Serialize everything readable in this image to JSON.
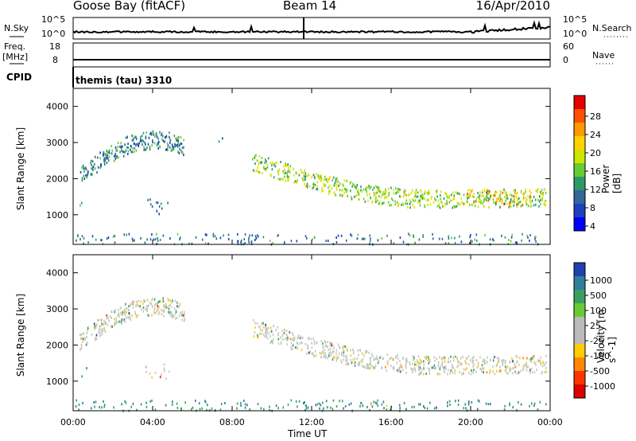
{
  "header": {
    "station": "Goose Bay (fitACF)",
    "beam": "Beam 14",
    "date": "16/Apr/2010"
  },
  "noise_panel": {
    "left_label": "N.Sky",
    "right_label": "N.Search",
    "left_ticks": [
      "10^5",
      "10^0"
    ],
    "right_ticks": [
      "10^5",
      "10^0"
    ]
  },
  "freq_panel": {
    "left_label_1": "Freq.",
    "left_label_2": "[MHz]",
    "right_label": "Nave",
    "left_ticks": [
      "18",
      "8"
    ],
    "right_ticks": [
      "60",
      "0"
    ]
  },
  "cpid": {
    "label": "CPID",
    "value": "themis (tau) 3310"
  },
  "xaxis": {
    "title": "Time UT",
    "ticks": [
      "00:00",
      "04:00",
      "08:00",
      "12:00",
      "16:00",
      "20:00",
      "00:00"
    ]
  },
  "power_panel": {
    "ylabel": "Slant Range [km]",
    "yticks": [
      "4000",
      "3000",
      "2000",
      "1000"
    ],
    "colorbar_label": "Power [dB]",
    "colorbar_ticks": [
      "28",
      "24",
      "20",
      "16",
      "12",
      "8",
      "4"
    ],
    "colorbar_colors": [
      "#e60000",
      "#ff5000",
      "#ff9900",
      "#ffd200",
      "#cce600",
      "#66cc33",
      "#2e9966",
      "#336699",
      "#1f3fbf",
      "#0000ff"
    ]
  },
  "velocity_panel": {
    "ylabel": "Slant Range [km]",
    "yticks": [
      "4000",
      "3000",
      "2000",
      "1000"
    ],
    "colorbar_label": "Velocity [m s^-1]",
    "colorbar_ticks": [
      "1000",
      "500",
      "100",
      "25",
      "-25",
      "-100",
      "-500",
      "-1000"
    ],
    "colorbar_colors": [
      "#2040b0",
      "#2e7f99",
      "#3aa060",
      "#66cc33",
      "#bbbbbb",
      "#bbbbbb",
      "#ffcc00",
      "#ff8800",
      "#ff3300",
      "#dd0000"
    ]
  },
  "chart_data": [
    {
      "type": "line",
      "title": "N.Sky / N.Search",
      "x_range_hours": [
        0,
        24
      ],
      "description": "noise level trace, mostly flat near 10^0 with rise near the end"
    },
    {
      "type": "heatmap",
      "title": "Power [dB]",
      "xlabel": "Time UT",
      "ylabel": "Slant Range [km]",
      "xlim_hours": [
        0,
        24
      ],
      "ylim_km": [
        180,
        4500
      ],
      "colorbar_range": [
        0,
        30
      ],
      "echo_regions": [
        {
          "t0": 0.3,
          "t1": 5.6,
          "r0": 1700,
          "r1": 3600,
          "power_db": 10
        },
        {
          "t0": 0.3,
          "t1": 0.7,
          "r0": 1150,
          "r1": 1400,
          "power_db": 14
        },
        {
          "t0": 3.6,
          "t1": 4.8,
          "r0": 1050,
          "r1": 1500,
          "power_db": 9
        },
        {
          "t0": 7.3,
          "t1": 7.6,
          "r0": 2900,
          "r1": 3200,
          "power_db": 10
        },
        {
          "t0": 9.0,
          "t1": 23.8,
          "r0": 1100,
          "r1": 2800,
          "power_db": 16
        },
        {
          "t0": 19.5,
          "t1": 23.0,
          "r0": 1300,
          "r1": 1700,
          "power_db": 24
        },
        {
          "t0": 0.0,
          "t1": 23.8,
          "r0": 200,
          "r1": 500,
          "power_db": 10
        }
      ]
    },
    {
      "type": "heatmap",
      "title": "Velocity [m s-1]",
      "xlabel": "Time UT",
      "ylabel": "Slant Range [km]",
      "xlim_hours": [
        0,
        24
      ],
      "ylim_km": [
        180,
        4500
      ],
      "colorbar_range": [
        -1000,
        1000
      ],
      "echo_regions": [
        {
          "t0": 0.3,
          "t1": 5.6,
          "r0": 1700,
          "r1": 3600,
          "velocity": 0
        },
        {
          "t0": 0.3,
          "t1": 0.7,
          "r0": 1150,
          "r1": 1400,
          "velocity": 100
        },
        {
          "t0": 3.6,
          "t1": 4.8,
          "r0": 1050,
          "r1": 1500,
          "velocity": 0
        },
        {
          "t0": 9.0,
          "t1": 23.8,
          "r0": 1100,
          "r1": 2800,
          "velocity": 0
        },
        {
          "t0": 0.0,
          "t1": 23.8,
          "r0": 200,
          "r1": 500,
          "velocity": 100
        }
      ]
    }
  ]
}
